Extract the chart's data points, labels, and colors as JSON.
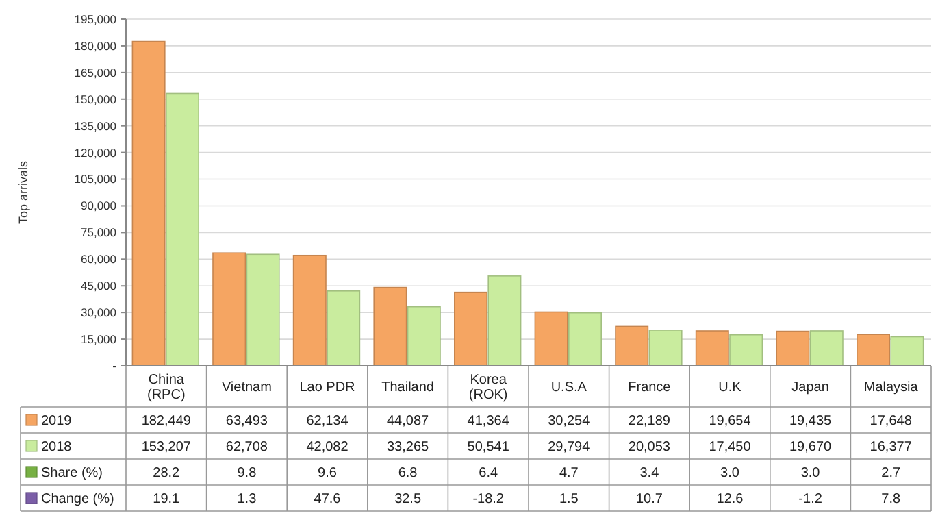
{
  "chart_data": {
    "type": "bar",
    "ylabel": "Top arrivals",
    "categories": [
      "China\n(RPC)",
      "Vietnam",
      "Lao PDR",
      "Thailand",
      "Korea\n(ROK)",
      "U.S.A",
      "France",
      "U.K",
      "Japan",
      "Malaysia"
    ],
    "series": [
      {
        "name": "2019",
        "color": "#f5a562",
        "values": [
          182449,
          63493,
          62134,
          44087,
          41364,
          30254,
          22189,
          19654,
          19435,
          17648
        ],
        "value_labels": [
          "182,449",
          "63,493",
          "62,134",
          "44,087",
          "41,364",
          "30,254",
          "22,189",
          "19,654",
          "19,435",
          "17,648"
        ]
      },
      {
        "name": "2018",
        "color": "#c9ec9e",
        "values": [
          153207,
          62708,
          42082,
          33265,
          50541,
          29794,
          20053,
          17450,
          19670,
          16377
        ],
        "value_labels": [
          "153,207",
          "62,708",
          "42,082",
          "33,265",
          "50,541",
          "29,794",
          "20,053",
          "17,450",
          "19,670",
          "16,377"
        ]
      },
      {
        "name": "Share (%)",
        "color": "#77b043",
        "values": [
          null,
          null,
          null,
          null,
          null,
          null,
          null,
          null,
          null,
          null
        ],
        "value_labels": [
          "28.2",
          "9.8",
          "9.6",
          "6.8",
          "6.4",
          "4.7",
          "3.4",
          "3.0",
          "3.0",
          "2.7"
        ]
      },
      {
        "name": "Change (%)",
        "color": "#7b5ea7",
        "values": [
          null,
          null,
          null,
          null,
          null,
          null,
          null,
          null,
          null,
          null
        ],
        "value_labels": [
          "19.1",
          "1.3",
          "47.6",
          "32.5",
          "-18.2",
          "1.5",
          "10.7",
          "12.6",
          "-1.2",
          "7.8"
        ]
      }
    ],
    "ylim": [
      0,
      195000
    ],
    "yticks": [
      {
        "value": 0,
        "label": "-"
      },
      {
        "value": 15000,
        "label": "15,000"
      },
      {
        "value": 30000,
        "label": "30,000"
      },
      {
        "value": 45000,
        "label": "45,000"
      },
      {
        "value": 60000,
        "label": "60,000"
      },
      {
        "value": 75000,
        "label": "75,000"
      },
      {
        "value": 90000,
        "label": "90,000"
      },
      {
        "value": 105000,
        "label": "105,000"
      },
      {
        "value": 120000,
        "label": "120,000"
      },
      {
        "value": 135000,
        "label": "135,000"
      },
      {
        "value": 150000,
        "label": "150,000"
      },
      {
        "value": 165000,
        "label": "165,000"
      },
      {
        "value": 180000,
        "label": "180,000"
      },
      {
        "value": 195000,
        "label": "195,000"
      }
    ],
    "grid": "y",
    "legend": "bottom"
  }
}
